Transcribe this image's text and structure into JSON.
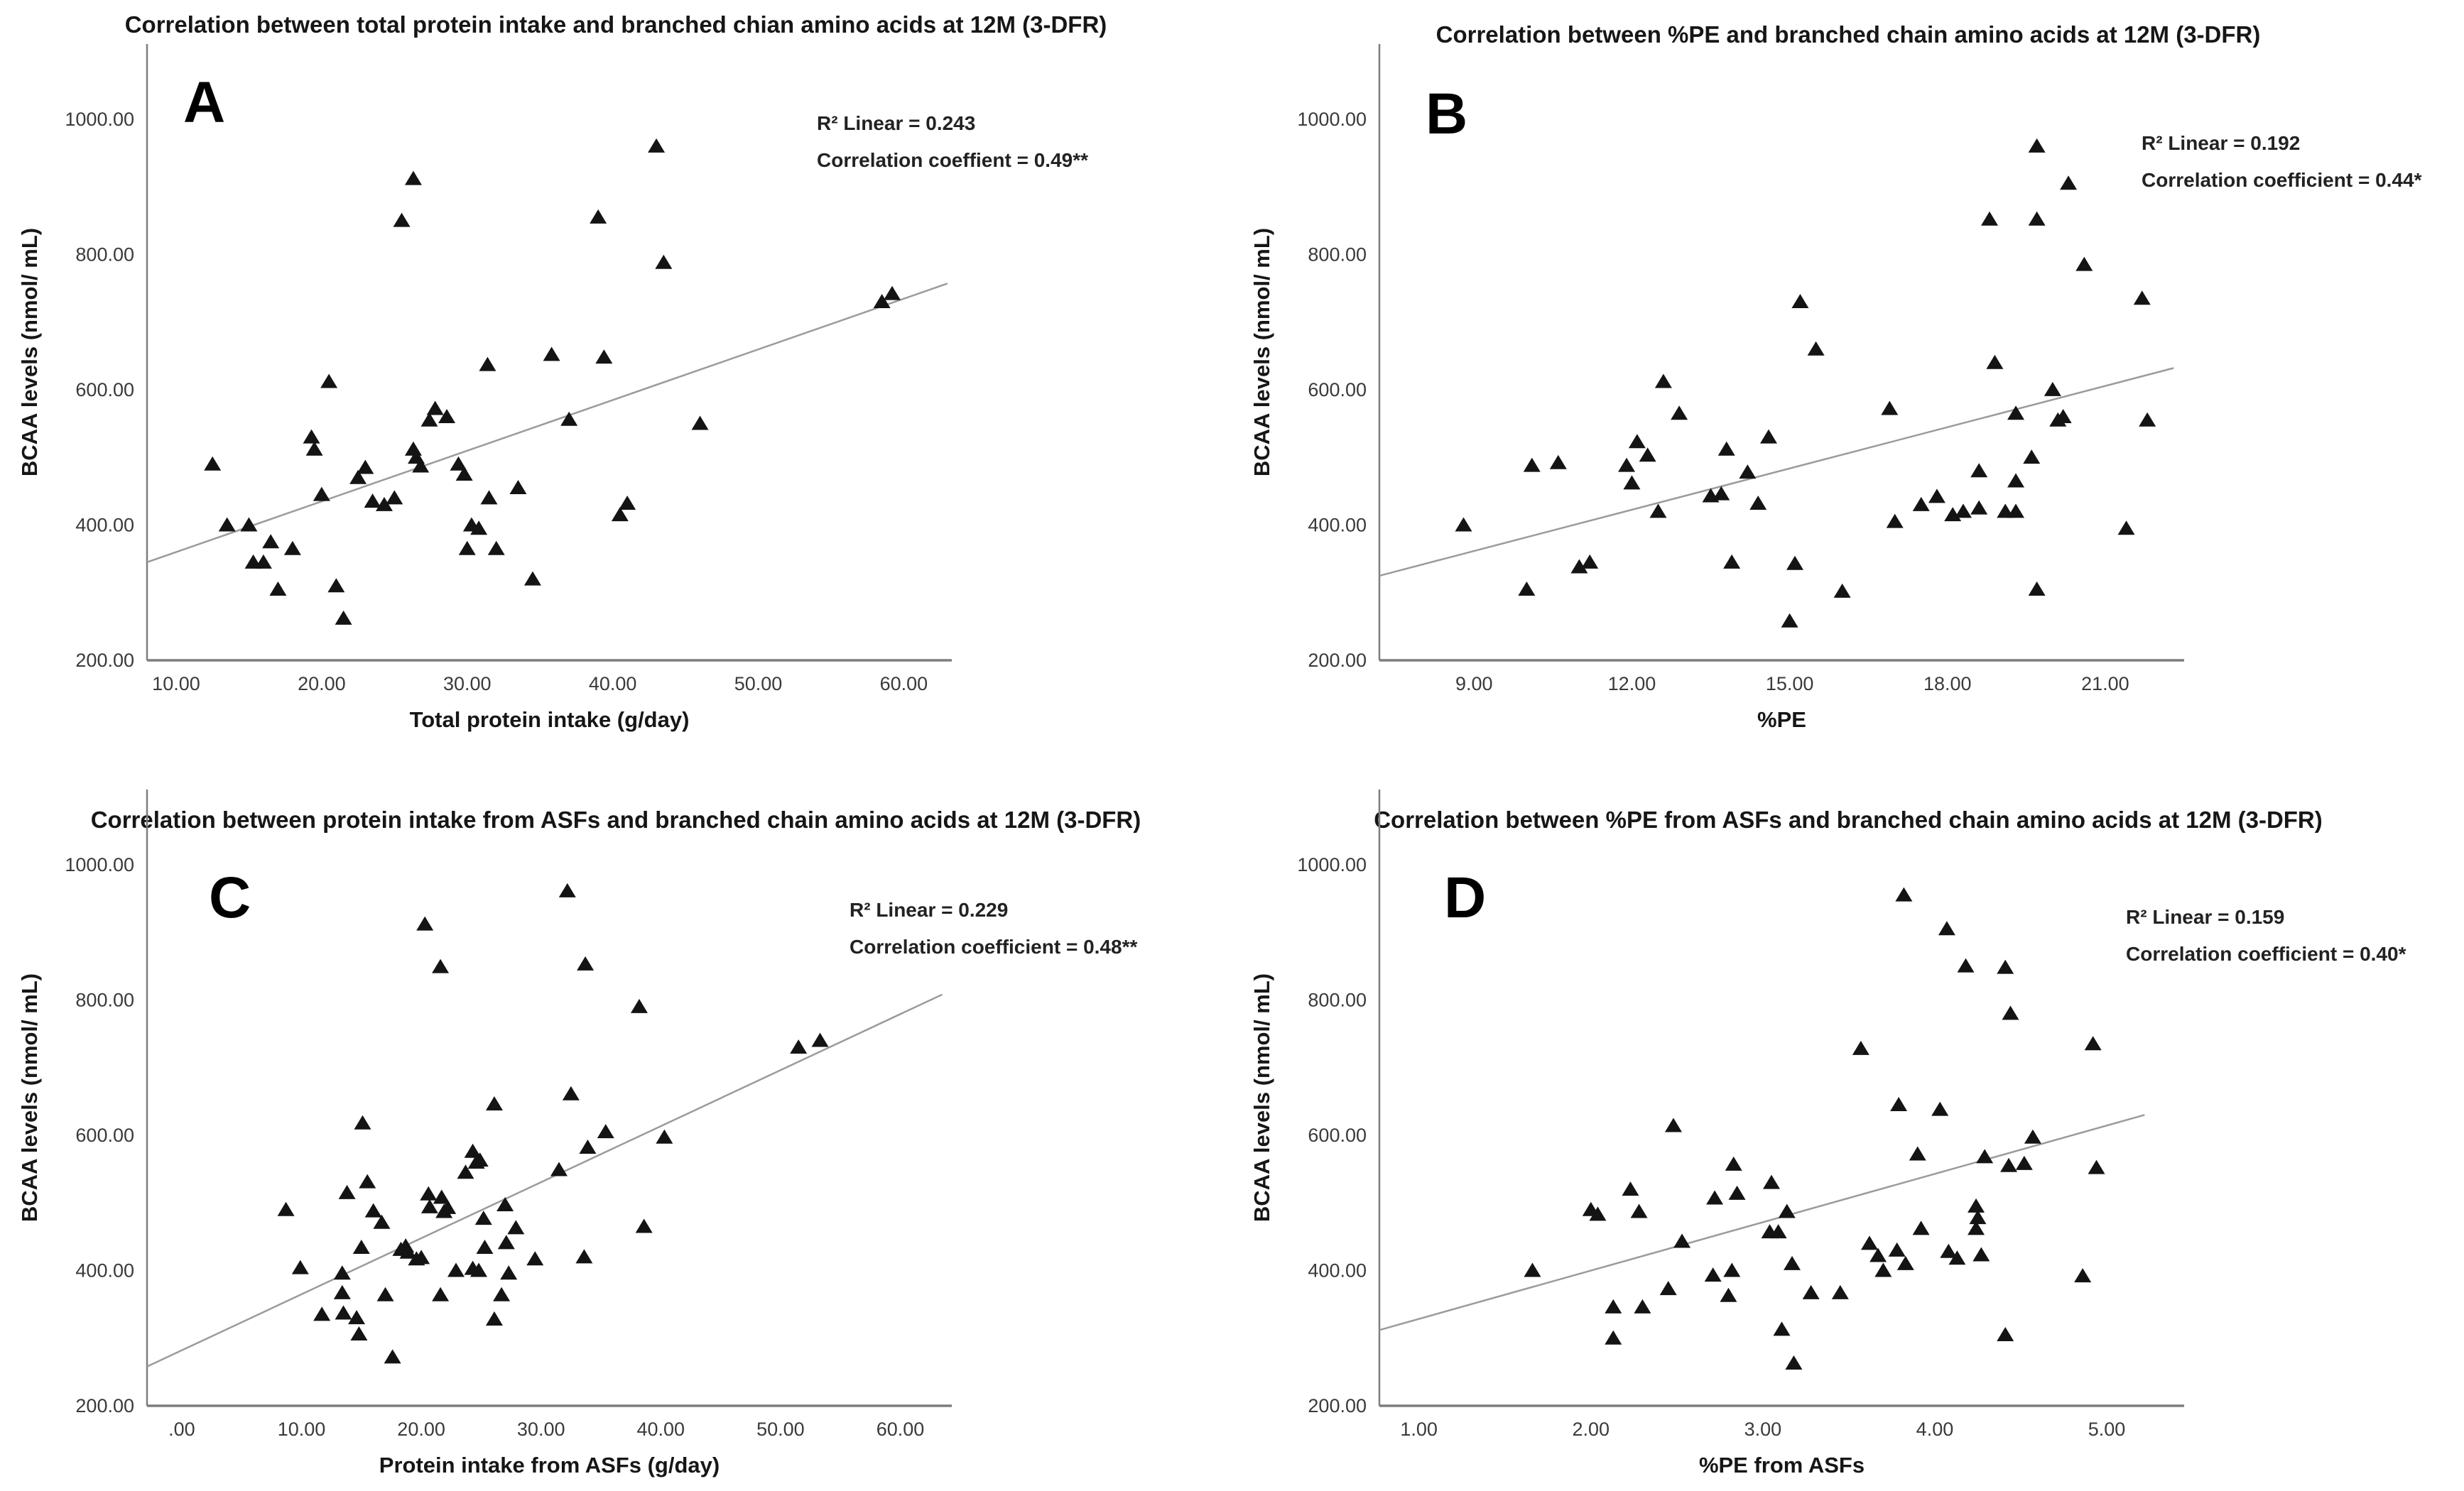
{
  "figure": {
    "background": "#ffffff",
    "marker_shape": "filled-triangle-up",
    "marker_color": "#141414",
    "trendline_color": "#9b9b9b",
    "axis_color": "#7d7d7d",
    "text_color": "#161616"
  },
  "chart_data": [
    {
      "type": "scatter",
      "letter": "A",
      "title": "Correlation between total protein intake and branched chian amino acids at 12M (3-DFR)",
      "xlabel": "Total protein intake (g/day)",
      "ylabel": "BCAA levels (nmol/ mL)",
      "r2_text": "R² Linear = 0.243",
      "corr_text": "Correlation coeffient = 0.49**",
      "xlim": [
        8,
        63.3
      ],
      "ylim": [
        200,
        1111
      ],
      "x_tick_values": [
        10,
        20,
        30,
        40,
        50,
        60
      ],
      "x_tick_labels": [
        "10.00",
        "20.00",
        "30.00",
        "40.00",
        "50.00",
        "60.00"
      ],
      "y_tick_values": [
        200,
        400,
        600,
        800,
        1000
      ],
      "y_tick_labels": [
        "200.00",
        "400.00",
        "600.00",
        "800.00",
        "1000.00"
      ],
      "grid": false,
      "legend": "none",
      "trendline": {
        "x1": 8,
        "y1": 345,
        "x2": 63,
        "y2": 757
      },
      "points": [
        [
          12.5,
          490
        ],
        [
          13.5,
          400
        ],
        [
          15,
          400
        ],
        [
          15.3,
          345
        ],
        [
          16,
          345
        ],
        [
          16.5,
          375
        ],
        [
          17,
          305
        ],
        [
          18,
          365
        ],
        [
          19.3,
          530
        ],
        [
          19.5,
          512
        ],
        [
          20,
          445
        ],
        [
          20.5,
          612
        ],
        [
          21,
          310
        ],
        [
          21.5,
          262
        ],
        [
          22.5,
          470
        ],
        [
          23,
          485
        ],
        [
          23.5,
          435
        ],
        [
          24.3,
          430
        ],
        [
          25,
          440
        ],
        [
          25.5,
          850
        ],
        [
          26.3,
          912
        ],
        [
          26.3,
          512
        ],
        [
          26.5,
          500
        ],
        [
          26.8,
          487
        ],
        [
          27.4,
          555
        ],
        [
          27.8,
          572
        ],
        [
          28.6,
          560
        ],
        [
          29.4,
          490
        ],
        [
          29.8,
          475
        ],
        [
          30,
          365
        ],
        [
          30.3,
          400
        ],
        [
          30.8,
          395
        ],
        [
          31.4,
          637
        ],
        [
          31.5,
          440
        ],
        [
          32,
          365
        ],
        [
          33.5,
          455
        ],
        [
          34.5,
          320
        ],
        [
          35.8,
          652
        ],
        [
          37,
          556
        ],
        [
          39,
          855
        ],
        [
          39.4,
          648
        ],
        [
          40.5,
          415
        ],
        [
          41,
          432
        ],
        [
          43,
          960
        ],
        [
          43.5,
          788
        ],
        [
          46,
          550
        ],
        [
          58.5,
          730
        ],
        [
          59.2,
          742
        ]
      ]
    },
    {
      "type": "scatter",
      "letter": "B",
      "title": "Correlation between %PE and branched chain amino acids at 12M (3-DFR)",
      "xlabel": "%PE",
      "ylabel": "BCAA levels (nmol/ mL)",
      "r2_text": "R² Linear = 0.192",
      "corr_text": "Correlation coefficient = 0.44*",
      "xlim": [
        7.2,
        22.5
      ],
      "ylim": [
        200,
        1111
      ],
      "x_tick_values": [
        9,
        12,
        15,
        18,
        21
      ],
      "x_tick_labels": [
        "9.00",
        "12.00",
        "15.00",
        "18.00",
        "21.00"
      ],
      "y_tick_values": [
        200,
        400,
        600,
        800,
        1000
      ],
      "y_tick_labels": [
        "200.00",
        "400.00",
        "600.00",
        "800.00",
        "1000.00"
      ],
      "grid": false,
      "legend": "none",
      "trendline": {
        "x1": 7.2,
        "y1": 325,
        "x2": 22.3,
        "y2": 632
      },
      "points": [
        [
          8.8,
          400
        ],
        [
          10,
          305
        ],
        [
          10.1,
          488
        ],
        [
          10.6,
          492
        ],
        [
          11,
          338
        ],
        [
          11.2,
          345
        ],
        [
          11.9,
          488
        ],
        [
          12,
          462
        ],
        [
          12.1,
          523
        ],
        [
          12.3,
          503
        ],
        [
          12.5,
          420
        ],
        [
          12.6,
          612
        ],
        [
          12.9,
          565
        ],
        [
          13.5,
          443
        ],
        [
          13.7,
          446
        ],
        [
          13.8,
          512
        ],
        [
          13.9,
          345
        ],
        [
          14.2,
          478
        ],
        [
          14.4,
          432
        ],
        [
          14.6,
          530
        ],
        [
          15,
          258
        ],
        [
          15.1,
          343
        ],
        [
          15.2,
          730
        ],
        [
          15.5,
          660
        ],
        [
          16,
          302
        ],
        [
          16.9,
          572
        ],
        [
          17,
          405
        ],
        [
          17.5,
          430
        ],
        [
          17.8,
          442
        ],
        [
          18.1,
          415
        ],
        [
          18.3,
          420
        ],
        [
          18.6,
          425
        ],
        [
          18.6,
          480
        ],
        [
          18.8,
          852
        ],
        [
          18.9,
          640
        ],
        [
          19.1,
          420
        ],
        [
          19.3,
          420
        ],
        [
          19.3,
          465
        ],
        [
          19.3,
          565
        ],
        [
          19.6,
          500
        ],
        [
          19.7,
          960
        ],
        [
          19.7,
          852
        ],
        [
          19.7,
          305
        ],
        [
          20,
          600
        ],
        [
          20.1,
          555
        ],
        [
          20.2,
          560
        ],
        [
          20.3,
          905
        ],
        [
          20.6,
          785
        ],
        [
          21.4,
          395
        ],
        [
          21.7,
          735
        ],
        [
          21.8,
          555
        ]
      ]
    },
    {
      "type": "scatter",
      "letter": "C",
      "title": "Correlation between protein intake from ASFs and branched chain amino acids at 12M (3-DFR)",
      "xlabel": "Protein intake from ASFs (g/day)",
      "ylabel": "BCAA levels (nmol/ mL)",
      "r2_text": "R² Linear = 0.229",
      "corr_text": "Correlation coefficient = 0.48**",
      "xlim": [
        -2.9,
        64.3
      ],
      "ylim": [
        200,
        1111
      ],
      "x_tick_values": [
        0,
        10,
        20,
        30,
        40,
        50,
        60
      ],
      "x_tick_labels": [
        ".00",
        "10.00",
        "20.00",
        "30.00",
        "40.00",
        "50.00",
        "60.00"
      ],
      "y_tick_values": [
        200,
        400,
        600,
        800,
        1000
      ],
      "y_tick_labels": [
        "200.00",
        "400.00",
        "600.00",
        "800.00",
        "1000.00"
      ],
      "grid": false,
      "legend": "none",
      "trendline": {
        "x1": -2.9,
        "y1": 258,
        "x2": 63.5,
        "y2": 808
      },
      "points": [
        [
          8.7,
          490
        ],
        [
          9.9,
          404
        ],
        [
          11.7,
          335
        ],
        [
          13.4,
          396
        ],
        [
          13.4,
          367
        ],
        [
          13.5,
          337
        ],
        [
          13.8,
          515
        ],
        [
          14.6,
          330
        ],
        [
          14.8,
          306
        ],
        [
          15.0,
          434
        ],
        [
          15.1,
          618
        ],
        [
          15.5,
          531
        ],
        [
          16.0,
          488
        ],
        [
          16.7,
          471
        ],
        [
          17.0,
          364
        ],
        [
          17.6,
          272
        ],
        [
          18.3,
          431
        ],
        [
          18.7,
          436
        ],
        [
          18.9,
          427
        ],
        [
          19.6,
          417
        ],
        [
          20.0,
          419
        ],
        [
          20.3,
          912
        ],
        [
          20.6,
          513
        ],
        [
          20.7,
          494
        ],
        [
          21.6,
          849
        ],
        [
          21.6,
          364
        ],
        [
          21.7,
          508
        ],
        [
          21.9,
          487
        ],
        [
          22.2,
          493
        ],
        [
          22.9,
          400
        ],
        [
          23.7,
          545
        ],
        [
          24.3,
          576
        ],
        [
          24.3,
          403
        ],
        [
          24.6,
          560
        ],
        [
          24.9,
          563
        ],
        [
          24.8,
          400
        ],
        [
          25.2,
          477
        ],
        [
          25.3,
          434
        ],
        [
          26.1,
          646
        ],
        [
          26.1,
          328
        ],
        [
          26.7,
          364
        ],
        [
          27.0,
          497
        ],
        [
          27.1,
          441
        ],
        [
          27.3,
          396
        ],
        [
          27.9,
          463
        ],
        [
          29.5,
          417
        ],
        [
          31.5,
          549
        ],
        [
          32.2,
          961
        ],
        [
          32.5,
          661
        ],
        [
          33.6,
          420
        ],
        [
          33.7,
          853
        ],
        [
          33.9,
          582
        ],
        [
          35.4,
          605
        ],
        [
          38.2,
          790
        ],
        [
          38.6,
          465
        ],
        [
          40.3,
          597
        ],
        [
          51.5,
          730
        ],
        [
          53.3,
          740
        ]
      ]
    },
    {
      "type": "scatter",
      "letter": "D",
      "title": "Correlation between %PE from ASFs and branched chain amino acids at 12M (3-DFR)",
      "xlabel": "%PE from ASFs",
      "ylabel": "BCAA levels (nmol/ mL)",
      "r2_text": "R² Linear = 0.159",
      "corr_text": "Correlation coefficient = 0.40*",
      "xlim": [
        0.77,
        5.45
      ],
      "ylim": [
        200,
        1111
      ],
      "x_tick_values": [
        1,
        2,
        3,
        4,
        5
      ],
      "x_tick_labels": [
        "1.00",
        "2.00",
        "3.00",
        "4.00",
        "5.00"
      ],
      "y_tick_values": [
        200,
        400,
        600,
        800,
        1000
      ],
      "y_tick_labels": [
        "200.00",
        "400.00",
        "600.00",
        "800.00",
        "1000.00"
      ],
      "grid": false,
      "legend": "none",
      "trendline": {
        "x1": 0.77,
        "y1": 312,
        "x2": 5.22,
        "y2": 630
      },
      "points": [
        [
          1.66,
          400
        ],
        [
          2.0,
          490
        ],
        [
          2.04,
          483
        ],
        [
          2.13,
          346
        ],
        [
          2.13,
          300
        ],
        [
          2.23,
          520
        ],
        [
          2.28,
          487
        ],
        [
          2.3,
          346
        ],
        [
          2.45,
          373
        ],
        [
          2.48,
          614
        ],
        [
          2.53,
          443
        ],
        [
          2.71,
          393
        ],
        [
          2.72,
          507
        ],
        [
          2.8,
          363
        ],
        [
          2.82,
          400
        ],
        [
          2.83,
          557
        ],
        [
          2.85,
          514
        ],
        [
          3.04,
          457
        ],
        [
          3.05,
          530
        ],
        [
          3.09,
          457
        ],
        [
          3.11,
          313
        ],
        [
          3.14,
          487
        ],
        [
          3.17,
          410
        ],
        [
          3.18,
          263
        ],
        [
          3.28,
          367
        ],
        [
          3.45,
          367
        ],
        [
          3.57,
          728
        ],
        [
          3.62,
          440
        ],
        [
          3.67,
          422
        ],
        [
          3.7,
          400
        ],
        [
          3.78,
          430
        ],
        [
          3.83,
          410
        ],
        [
          3.82,
          955
        ],
        [
          3.79,
          645
        ],
        [
          3.9,
          572
        ],
        [
          3.92,
          462
        ],
        [
          4.03,
          638
        ],
        [
          4.07,
          905
        ],
        [
          4.08,
          428
        ],
        [
          4.13,
          418
        ],
        [
          4.18,
          850
        ],
        [
          4.24,
          495
        ],
        [
          4.25,
          478
        ],
        [
          4.24,
          462
        ],
        [
          4.27,
          423
        ],
        [
          4.29,
          568
        ],
        [
          4.41,
          848
        ],
        [
          4.43,
          555
        ],
        [
          4.41,
          305
        ],
        [
          4.44,
          780
        ],
        [
          4.52,
          558
        ],
        [
          4.57,
          597
        ],
        [
          4.86,
          392
        ],
        [
          4.92,
          735
        ],
        [
          4.94,
          552
        ]
      ]
    }
  ]
}
